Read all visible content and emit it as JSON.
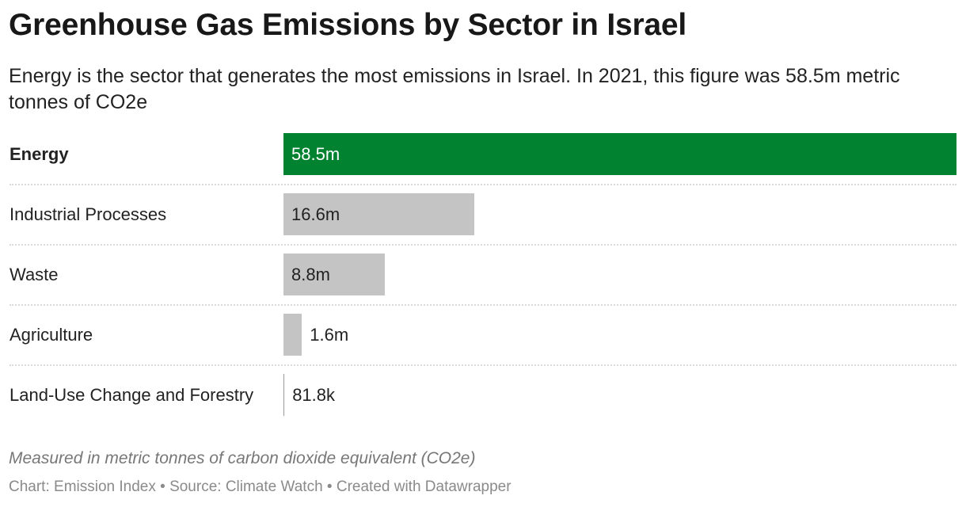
{
  "header": {
    "title": "Greenhouse Gas Emissions by Sector in Israel",
    "subtitle": "Energy is the sector that generates the most emissions in Israel. In 2021, this figure was 58.5m metric tonnes of CO2e"
  },
  "chart_data": {
    "type": "bar",
    "orientation": "horizontal",
    "categories": [
      "Energy",
      "Industrial Processes",
      "Waste",
      "Agriculture",
      "Land-Use Change and Forestry"
    ],
    "values": [
      58500000,
      16600000,
      8800000,
      1600000,
      81800
    ],
    "value_labels": [
      "58.5m",
      "16.6m",
      "8.8m",
      "1.6m",
      "81.8k"
    ],
    "highlight": "Energy",
    "xlim": [
      0,
      58500000
    ],
    "grid": false,
    "colors": {
      "highlight": "#008230",
      "default": "#c4c4c4"
    }
  },
  "footer": {
    "notes": "Measured in metric tonnes of carbon dioxide equivalent (CO2e)",
    "credits": "Chart: Emission Index • Source: Climate Watch • Created with Datawrapper"
  }
}
